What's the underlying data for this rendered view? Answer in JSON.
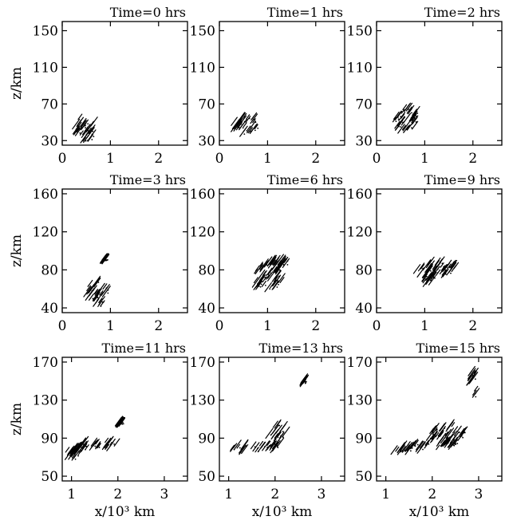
{
  "chart_data": {
    "type": "scatter",
    "rows": [
      {
        "ylabel": "z/km",
        "xlabel": "",
        "xticks": [
          0,
          1,
          2
        ],
        "yticks": [
          30,
          70,
          110,
          150
        ],
        "xlim": [
          0,
          2.6
        ],
        "ylim": [
          25,
          160
        ],
        "panels": [
          {
            "title": "Time=0 hrs",
            "blobs": [
              {
                "cx": 0.48,
                "cy": 45,
                "rx": 0.22,
                "ry": 14,
                "angle": 0
              }
            ]
          },
          {
            "title": "Time=1 hrs",
            "blobs": [
              {
                "cx": 0.55,
                "cy": 49,
                "rx": 0.25,
                "ry": 11,
                "angle": -5
              }
            ]
          },
          {
            "title": "Time=2 hrs",
            "blobs": [
              {
                "cx": 0.62,
                "cy": 55,
                "rx": 0.26,
                "ry": 14,
                "angle": -20
              }
            ]
          }
        ]
      },
      {
        "ylabel": "z/km",
        "xlabel": "",
        "xticks": [
          0,
          1,
          2
        ],
        "yticks": [
          40,
          80,
          120,
          160
        ],
        "xlim": [
          0,
          2.6
        ],
        "ylim": [
          35,
          165
        ],
        "panels": [
          {
            "title": "Time=3 hrs",
            "blobs": [
              {
                "cx": 0.72,
                "cy": 56,
                "rx": 0.22,
                "ry": 13,
                "angle": -25
              },
              {
                "cx": 0.88,
                "cy": 92,
                "rx": 0.03,
                "ry": 1.2,
                "angle": 0
              }
            ]
          },
          {
            "title": "Time=6 hrs",
            "blobs": [
              {
                "cx": 1.05,
                "cy": 76,
                "rx": 0.35,
                "ry": 14,
                "angle": -35
              },
              {
                "cx": 1.2,
                "cy": 89,
                "rx": 0.25,
                "ry": 4,
                "angle": 0
              }
            ]
          },
          {
            "title": "Time=9 hrs",
            "blobs": [
              {
                "cx": 1.25,
                "cy": 82,
                "rx": 0.45,
                "ry": 8,
                "angle": -10
              },
              {
                "cx": 1.05,
                "cy": 72,
                "rx": 0.15,
                "ry": 6,
                "angle": -30
              }
            ]
          }
        ]
      },
      {
        "ylabel": "z/km",
        "xlabel": "x/10³ km",
        "xticks": [
          1,
          2,
          3
        ],
        "yticks": [
          50,
          90,
          130,
          170
        ],
        "xlim": [
          0.8,
          3.5
        ],
        "ylim": [
          45,
          175
        ],
        "panels": [
          {
            "title": "Time=11 hrs",
            "blobs": [
              {
                "cx": 1.45,
                "cy": 83,
                "rx": 0.55,
                "ry": 5,
                "angle": -5
              },
              {
                "cx": 1.05,
                "cy": 75,
                "rx": 0.15,
                "ry": 8,
                "angle": -20
              },
              {
                "cx": 2.05,
                "cy": 107,
                "rx": 0.05,
                "ry": 1.5,
                "angle": 0
              }
            ]
          },
          {
            "title": "Time=13 hrs",
            "blobs": [
              {
                "cx": 1.65,
                "cy": 82,
                "rx": 0.65,
                "ry": 4,
                "angle": -5
              },
              {
                "cx": 2.05,
                "cy": 98,
                "rx": 0.2,
                "ry": 8,
                "angle": -20
              },
              {
                "cx": 2.62,
                "cy": 151,
                "rx": 0.02,
                "ry": 2,
                "angle": 0
              }
            ]
          },
          {
            "title": "Time=15 hrs",
            "blobs": [
              {
                "cx": 1.8,
                "cy": 82,
                "rx": 0.8,
                "ry": 4,
                "angle": -5
              },
              {
                "cx": 2.3,
                "cy": 95,
                "rx": 0.4,
                "ry": 9,
                "angle": -10
              },
              {
                "cx": 2.9,
                "cy": 150,
                "rx": 0.1,
                "ry": 16,
                "angle": 0
              }
            ]
          }
        ]
      }
    ]
  }
}
